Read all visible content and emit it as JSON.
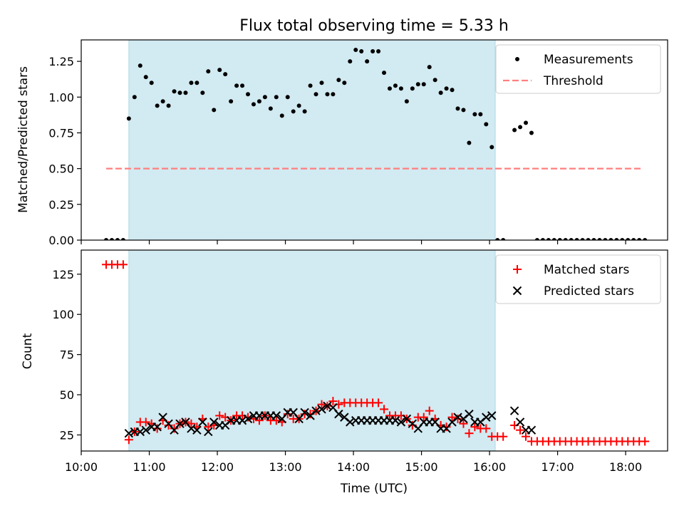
{
  "title": "Flux total observing time = 5.33 h",
  "colors": {
    "observing_band": "#add8e6",
    "measurement": "#000000",
    "threshold": "#ff7f7f",
    "matched": "#ff0000",
    "predicted": "#000000"
  },
  "chart_data": [
    {
      "type": "scatter",
      "ylabel": "Matched/Predicted stars",
      "ylim": [
        0,
        1.4
      ],
      "xlim": [
        "10:00",
        "18:37"
      ],
      "yticks": [
        "0.00",
        "0.25",
        "0.50",
        "0.75",
        "1.00",
        "1.25"
      ],
      "observing_window": [
        "10:42",
        "16:05"
      ],
      "threshold": {
        "value": 0.5,
        "from": "10:22",
        "to": "18:15"
      },
      "legend_position": "upper right",
      "legend": [
        "Measurements",
        "Threshold"
      ],
      "series": [
        {
          "name": "Measurements",
          "x": [
            "10:22",
            "10:27",
            "10:32",
            "10:37",
            "10:42",
            "10:47",
            "10:52",
            "10:57",
            "11:02",
            "11:07",
            "11:12",
            "11:17",
            "11:22",
            "11:27",
            "11:32",
            "11:37",
            "11:42",
            "11:47",
            "11:52",
            "11:57",
            "12:02",
            "12:07",
            "12:12",
            "12:17",
            "12:22",
            "12:27",
            "12:32",
            "12:37",
            "12:42",
            "12:47",
            "12:52",
            "12:57",
            "13:02",
            "13:07",
            "13:12",
            "13:17",
            "13:22",
            "13:27",
            "13:32",
            "13:37",
            "13:42",
            "13:47",
            "13:52",
            "13:57",
            "14:02",
            "14:07",
            "14:12",
            "14:17",
            "14:22",
            "14:27",
            "14:32",
            "14:37",
            "14:42",
            "14:47",
            "14:52",
            "14:57",
            "15:02",
            "15:07",
            "15:12",
            "15:17",
            "15:22",
            "15:27",
            "15:32",
            "15:37",
            "15:42",
            "15:47",
            "15:52",
            "15:57",
            "16:02",
            "16:07",
            "16:12",
            "16:17",
            "16:22",
            "16:27",
            "16:32",
            "16:37",
            "16:42",
            "16:47",
            "16:52",
            "16:57",
            "17:02",
            "17:07",
            "17:12",
            "17:17",
            "17:22",
            "17:27",
            "17:32",
            "17:37",
            "17:42",
            "17:47",
            "17:52",
            "17:57",
            "18:02",
            "18:07",
            "18:12",
            "18:17"
          ],
          "y": [
            0,
            0,
            0,
            0,
            0.85,
            1.0,
            1.22,
            1.14,
            1.1,
            0.94,
            0.97,
            0.94,
            1.04,
            1.03,
            1.03,
            1.1,
            1.1,
            1.03,
            1.18,
            0.91,
            1.19,
            1.16,
            0.97,
            1.08,
            1.08,
            1.02,
            0.95,
            0.97,
            1.0,
            0.92,
            1.0,
            0.87,
            1.0,
            0.9,
            0.94,
            0.9,
            1.08,
            1.02,
            1.1,
            1.02,
            1.02,
            1.12,
            1.1,
            1.25,
            1.33,
            1.32,
            1.25,
            1.32,
            1.32,
            1.17,
            1.06,
            1.08,
            1.06,
            0.97,
            1.06,
            1.09,
            1.09,
            1.21,
            1.12,
            1.03,
            1.06,
            1.05,
            0.92,
            0.91,
            0.68,
            0.88,
            0.88,
            0.81,
            0.65,
            0,
            0,
            null,
            0.77,
            0.79,
            0.82,
            0.75,
            0,
            0,
            0,
            0,
            0,
            0,
            0,
            0,
            0,
            0,
            0,
            0,
            0,
            0,
            0,
            0,
            0,
            0,
            0,
            0
          ]
        }
      ]
    },
    {
      "type": "scatter",
      "ylabel": "Count",
      "xlabel": "Time (UTC)",
      "ylim": [
        15,
        140
      ],
      "xlim": [
        "10:00",
        "18:37"
      ],
      "xticks": [
        "10:00",
        "11:00",
        "12:00",
        "13:00",
        "14:00",
        "15:00",
        "16:00",
        "17:00",
        "18:00"
      ],
      "yticks": [
        "25",
        "50",
        "75",
        "100",
        "125"
      ],
      "observing_window": [
        "10:42",
        "16:05"
      ],
      "legend_position": "upper right",
      "legend": [
        "Matched stars",
        "Predicted stars"
      ],
      "series": [
        {
          "name": "Matched stars",
          "x": [
            "10:22",
            "10:27",
            "10:32",
            "10:37",
            "10:42",
            "10:47",
            "10:52",
            "10:57",
            "11:02",
            "11:07",
            "11:12",
            "11:17",
            "11:22",
            "11:27",
            "11:32",
            "11:37",
            "11:42",
            "11:47",
            "11:52",
            "11:57",
            "12:02",
            "12:07",
            "12:12",
            "12:17",
            "12:22",
            "12:27",
            "12:32",
            "12:37",
            "12:42",
            "12:47",
            "12:52",
            "12:57",
            "13:02",
            "13:07",
            "13:12",
            "13:17",
            "13:22",
            "13:27",
            "13:32",
            "13:37",
            "13:42",
            "13:47",
            "13:52",
            "13:57",
            "14:02",
            "14:07",
            "14:12",
            "14:17",
            "14:22",
            "14:27",
            "14:32",
            "14:37",
            "14:42",
            "14:47",
            "14:52",
            "14:57",
            "15:02",
            "15:07",
            "15:12",
            "15:17",
            "15:22",
            "15:27",
            "15:32",
            "15:37",
            "15:42",
            "15:47",
            "15:52",
            "15:57",
            "16:02",
            "16:07",
            "16:12",
            "16:17",
            "16:22",
            "16:27",
            "16:32",
            "16:37",
            "16:42",
            "16:47",
            "16:52",
            "16:57",
            "17:02",
            "17:07",
            "17:12",
            "17:17",
            "17:22",
            "17:27",
            "17:32",
            "17:37",
            "17:42",
            "17:47",
            "17:52",
            "17:57",
            "18:02",
            "18:07",
            "18:12",
            "18:17"
          ],
          "y": [
            131,
            131,
            131,
            131,
            22,
            27,
            33,
            33,
            32,
            29,
            34,
            31,
            29,
            32,
            33,
            32,
            30,
            35,
            30,
            31,
            37,
            36,
            34,
            37,
            37,
            36,
            35,
            34,
            37,
            34,
            34,
            33,
            38,
            35,
            35,
            38,
            38,
            40,
            44,
            43,
            46,
            44,
            45,
            45,
            45,
            45,
            45,
            45,
            45,
            41,
            37,
            37,
            37,
            35,
            31,
            36,
            36,
            40,
            35,
            31,
            30,
            36,
            35,
            32,
            26,
            30,
            29,
            29,
            24,
            24,
            24,
            null,
            31,
            28,
            24,
            21,
            21,
            21,
            21,
            21,
            21,
            21,
            21,
            21,
            21,
            21,
            21,
            21,
            21,
            21,
            21,
            21,
            21,
            21,
            21,
            21
          ]
        },
        {
          "name": "Predicted stars",
          "x": [
            "10:42",
            "10:47",
            "10:52",
            "10:57",
            "11:02",
            "11:07",
            "11:12",
            "11:17",
            "11:22",
            "11:27",
            "11:32",
            "11:37",
            "11:42",
            "11:47",
            "11:52",
            "11:57",
            "12:02",
            "12:07",
            "12:12",
            "12:17",
            "12:22",
            "12:27",
            "12:32",
            "12:37",
            "12:42",
            "12:47",
            "12:52",
            "12:57",
            "13:02",
            "13:07",
            "13:12",
            "13:17",
            "13:22",
            "13:27",
            "13:32",
            "13:37",
            "13:42",
            "13:47",
            "13:52",
            "13:57",
            "14:02",
            "14:07",
            "14:12",
            "14:17",
            "14:22",
            "14:27",
            "14:32",
            "14:37",
            "14:42",
            "14:47",
            "14:52",
            "14:57",
            "15:02",
            "15:07",
            "15:12",
            "15:17",
            "15:22",
            "15:27",
            "15:32",
            "15:37",
            "15:42",
            "15:47",
            "15:52",
            "15:57",
            "16:02",
            "16:22",
            "16:27",
            "16:32",
            "16:37"
          ],
          "y": [
            26,
            27,
            27,
            28,
            30,
            30,
            36,
            32,
            28,
            32,
            33,
            29,
            28,
            33,
            27,
            33,
            31,
            31,
            34,
            34,
            34,
            35,
            37,
            37,
            37,
            37,
            37,
            35,
            39,
            39,
            35,
            39,
            37,
            40,
            41,
            43,
            42,
            38,
            36,
            33,
            34,
            34,
            34,
            34,
            34,
            34,
            34,
            34,
            33,
            35,
            32,
            29,
            33,
            33,
            33,
            29,
            29,
            33,
            36,
            35,
            38,
            33,
            33,
            36,
            37,
            40,
            33,
            28,
            28
          ]
        }
      ]
    }
  ]
}
